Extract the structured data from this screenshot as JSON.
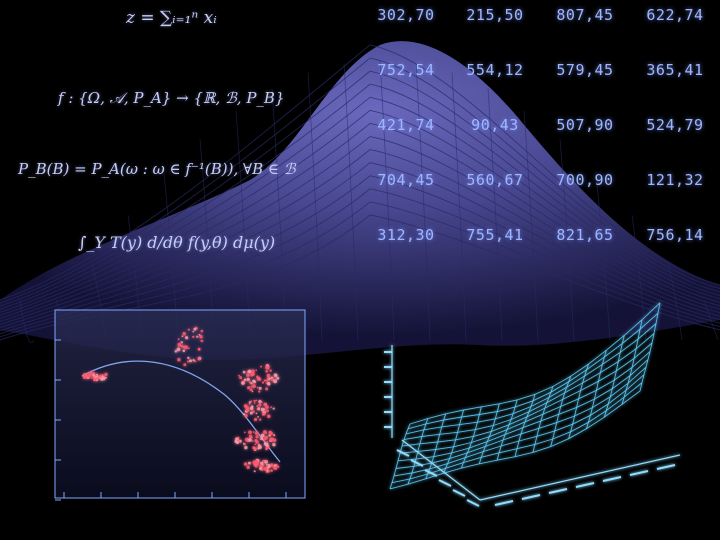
{
  "formulas": [
    "z = ∑ᵢ₌₁ⁿ xᵢ",
    "f : {Ω, 𝒜, P_A} → {ℝ, ℬ, P_B}",
    "P_B(B) = P_A(ω : ω ∈ f⁻¹(B)), ∀B ∈ ℬ",
    "∫_Y T(y) d/dθ f(y,θ) dμ(y)"
  ],
  "numbers": [
    [
      "302,70",
      "215,50",
      "807,45",
      "622,74"
    ],
    [
      "752,54",
      "554,12",
      "579,45",
      "365,41"
    ],
    [
      "421,74",
      "90,43",
      "507,90",
      "524,79"
    ],
    [
      "704,45",
      "560,67",
      "700,90",
      "121,32"
    ],
    [
      "312,30",
      "755,41",
      "821,65",
      "756,14"
    ]
  ],
  "colors": {
    "background": "#000000",
    "surface": "#5b5aa8",
    "text_glow": "#9fb6ff",
    "scatter_points": "#ff5a6e",
    "wireframe": "#5fd2ff"
  }
}
